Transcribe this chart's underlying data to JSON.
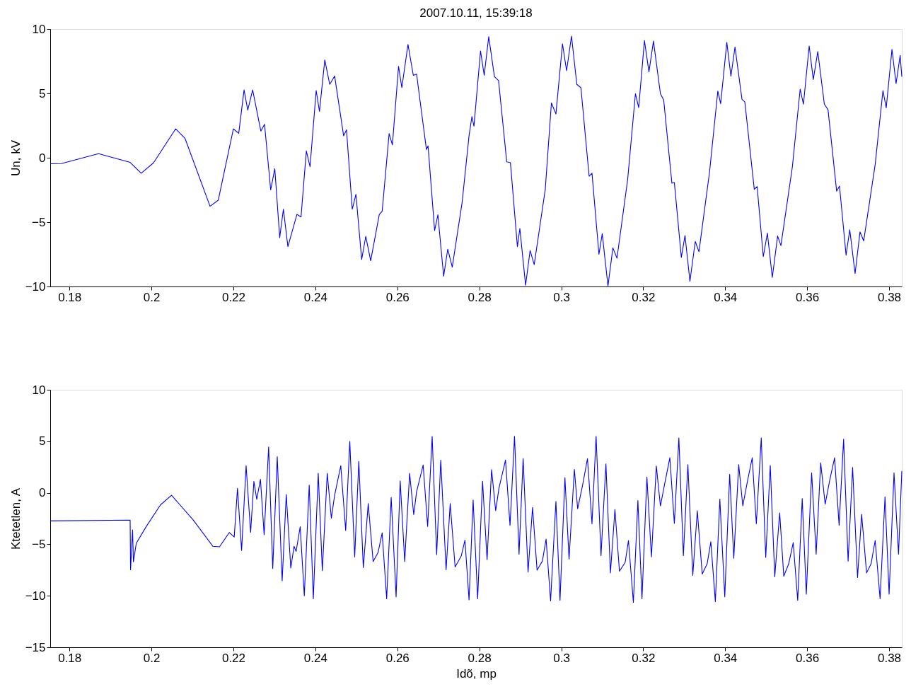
{
  "chart_data": [
    {
      "type": "line",
      "title": "2007.10.11, 15:39:18",
      "ylabel": "Un, kV",
      "xlim": [
        0.1753,
        0.3831
      ],
      "xticks": [
        0.18,
        0.2,
        0.22,
        0.24,
        0.26,
        0.28,
        0.3,
        0.32,
        0.34,
        0.36,
        0.38
      ],
      "ylim": [
        -10,
        10
      ],
      "yticks": [
        -10,
        -5,
        0,
        5,
        10
      ],
      "grid": false,
      "line_style": "solid",
      "marker": "none",
      "series": [
        {
          "color": "#0000ff",
          "x": [
            0.1753,
            0.178,
            0.1871,
            0.1948,
            0.1975,
            0.2005,
            0.2059,
            0.2082,
            0.2143,
            0.2163,
            0.22,
            0.2213,
            0.2226,
            0.2235,
            0.2247,
            0.2267,
            0.2276,
            0.2291,
            0.2301,
            0.2313,
            0.2322,
            0.2333,
            0.2355,
            0.2365,
            0.2378,
            0.2387,
            0.2402,
            0.241,
            0.2423,
            0.2435,
            0.2447,
            0.2469,
            0.2476,
            0.249,
            0.2499,
            0.2513,
            0.2523,
            0.2535,
            0.2556,
            0.2563,
            0.258,
            0.2588,
            0.2603,
            0.2611,
            0.2626,
            0.2639,
            0.2647,
            0.2671,
            0.2675,
            0.2691,
            0.2699,
            0.2713,
            0.2723,
            0.2734,
            0.2758,
            0.2775,
            0.2782,
            0.2787,
            0.2803,
            0.2812,
            0.2823,
            0.2837,
            0.2847,
            0.2867,
            0.2876,
            0.2893,
            0.2899,
            0.2913,
            0.2924,
            0.2934,
            0.2961,
            0.2976,
            0.2987,
            0.3003,
            0.3013,
            0.3025,
            0.3038,
            0.3048,
            0.3068,
            0.3075,
            0.3092,
            0.31,
            0.3114,
            0.3126,
            0.3136,
            0.3162,
            0.3181,
            0.3189,
            0.3203,
            0.3214,
            0.3225,
            0.3242,
            0.325,
            0.327,
            0.3276,
            0.3293,
            0.3302,
            0.3314,
            0.3327,
            0.3336,
            0.3362,
            0.3382,
            0.3389,
            0.3404,
            0.3414,
            0.3424,
            0.3441,
            0.3448,
            0.3471,
            0.3478,
            0.3493,
            0.3503,
            0.3515,
            0.3528,
            0.3536,
            0.3564,
            0.3583,
            0.3591,
            0.3605,
            0.3615,
            0.3626,
            0.3642,
            0.3651,
            0.3672,
            0.3679,
            0.3695,
            0.3704,
            0.3717,
            0.3729,
            0.3738,
            0.3766,
            0.3785,
            0.3793,
            0.3807,
            0.3817,
            0.3827,
            0.3831
          ],
          "values": [
            -0.47,
            -0.45,
            0.32,
            -0.36,
            -1.2,
            -0.4,
            2.24,
            1.5,
            -3.77,
            -3.3,
            2.24,
            1.9,
            5.27,
            3.7,
            5.27,
            2.07,
            2.6,
            -2.5,
            -0.85,
            -6.2,
            -4.0,
            -6.9,
            -4.4,
            -4.6,
            0.53,
            -0.7,
            5.22,
            3.6,
            7.6,
            5.7,
            6.35,
            1.7,
            2.17,
            -4.0,
            -2.84,
            -7.9,
            -6.1,
            -8.0,
            -4.4,
            -4.16,
            1.88,
            1.0,
            7.1,
            5.44,
            8.8,
            6.4,
            6.5,
            0.64,
            0.92,
            -5.65,
            -4.43,
            -9.2,
            -7.1,
            -8.5,
            -3.5,
            1.7,
            3.2,
            2.45,
            8.3,
            6.4,
            9.4,
            6.3,
            6.0,
            -0.32,
            -0.38,
            -6.9,
            -5.5,
            -9.9,
            -7.2,
            -8.3,
            -2.45,
            4.26,
            3.4,
            8.85,
            6.76,
            9.45,
            5.7,
            5.44,
            -1.43,
            -1.2,
            -7.5,
            -5.9,
            -9.96,
            -7.0,
            -7.8,
            -1.7,
            4.97,
            3.9,
            9.1,
            6.67,
            9.06,
            4.97,
            4.48,
            -1.98,
            -1.92,
            -7.74,
            -6.04,
            -9.6,
            -6.5,
            -7.3,
            -1.07,
            5.18,
            4.2,
            8.96,
            6.33,
            8.6,
            4.54,
            4.33,
            -2.45,
            -2.24,
            -7.68,
            -5.86,
            -9.3,
            -6.08,
            -6.82,
            -0.7,
            5.33,
            4.16,
            8.68,
            6.08,
            8.25,
            4.16,
            3.73,
            -2.6,
            -2.2,
            -7.57,
            -5.6,
            -9.0,
            -5.76,
            -6.46,
            -0.53,
            5.22,
            3.88,
            8.42,
            5.76,
            7.95,
            6.3
          ]
        }
      ]
    },
    {
      "type": "line",
      "xlabel": "Idõ, mp",
      "ylabel": "Ktetetlen, A",
      "xlim": [
        0.1753,
        0.3831
      ],
      "xticks": [
        0.18,
        0.2,
        0.22,
        0.24,
        0.26,
        0.28,
        0.3,
        0.32,
        0.34,
        0.36,
        0.38
      ],
      "ylim": [
        -15,
        10
      ],
      "yticks": [
        -15,
        -10,
        -5,
        0,
        5,
        10
      ],
      "grid": false,
      "line_style": "solid",
      "marker": "none",
      "series": [
        {
          "color": "#0000ff",
          "x": [
            0.1753,
            0.1948,
            0.1949,
            0.1954,
            0.1956,
            0.1963,
            0.1987,
            0.2022,
            0.2049,
            0.2102,
            0.215,
            0.2166,
            0.219,
            0.2202,
            0.221,
            0.222,
            0.2231,
            0.2242,
            0.225,
            0.2257,
            0.2266,
            0.2275,
            0.2286,
            0.2296,
            0.2307,
            0.2319,
            0.2329,
            0.234,
            0.2348,
            0.2353,
            0.2363,
            0.2373,
            0.2385,
            0.2395,
            0.2407,
            0.2417,
            0.2429,
            0.2439,
            0.2447,
            0.2462,
            0.2474,
            0.2484,
            0.2496,
            0.2506,
            0.2517,
            0.2529,
            0.2541,
            0.2553,
            0.2563,
            0.2574,
            0.2585,
            0.2597,
            0.2607,
            0.2618,
            0.263,
            0.264,
            0.2647,
            0.2663,
            0.2674,
            0.2685,
            0.2696,
            0.2706,
            0.2719,
            0.2729,
            0.2741,
            0.2756,
            0.2765,
            0.2775,
            0.2785,
            0.2796,
            0.2808,
            0.2819,
            0.283,
            0.284,
            0.2848,
            0.2864,
            0.2875,
            0.2886,
            0.2897,
            0.2907,
            0.2919,
            0.293,
            0.2941,
            0.2954,
            0.2963,
            0.2974,
            0.2987,
            0.2997,
            0.3009,
            0.3019,
            0.3032,
            0.304,
            0.3052,
            0.3064,
            0.3075,
            0.3085,
            0.3097,
            0.3109,
            0.312,
            0.3131,
            0.3142,
            0.3156,
            0.3164,
            0.3176,
            0.3187,
            0.3197,
            0.3209,
            0.322,
            0.3232,
            0.3242,
            0.3253,
            0.3265,
            0.3276,
            0.3287,
            0.3298,
            0.3309,
            0.3321,
            0.3332,
            0.3344,
            0.3356,
            0.3365,
            0.3376,
            0.3387,
            0.3399,
            0.3411,
            0.3421,
            0.3433,
            0.3443,
            0.3454,
            0.3466,
            0.3476,
            0.3488,
            0.3499,
            0.351,
            0.3521,
            0.3533,
            0.3543,
            0.3555,
            0.3566,
            0.3577,
            0.3588,
            0.3598,
            0.3611,
            0.3622,
            0.3633,
            0.3644,
            0.3655,
            0.3667,
            0.3678,
            0.3689,
            0.37,
            0.3711,
            0.3723,
            0.3733,
            0.3745,
            0.3756,
            0.3766,
            0.3778,
            0.379,
            0.38,
            0.3812,
            0.3823,
            0.3831
          ],
          "values": [
            -2.73,
            -2.65,
            -7.48,
            -3.6,
            -6.7,
            -4.9,
            -3.3,
            -1.18,
            -0.24,
            -2.65,
            -5.2,
            -5.25,
            -3.86,
            -4.3,
            0.43,
            -5.6,
            2.63,
            -3.86,
            1.1,
            -0.64,
            1.31,
            -4.07,
            4.45,
            -7.35,
            3.5,
            -8.55,
            -0.16,
            -7.3,
            -5.2,
            -5.7,
            -3.3,
            -10.0,
            0.75,
            -10.3,
            1.9,
            -7.56,
            1.9,
            -2.47,
            -0.24,
            2.63,
            -3.67,
            4.99,
            -6.22,
            3.06,
            -7.27,
            -1.05,
            -6.68,
            -5.8,
            -3.9,
            -10.3,
            -0.46,
            -10.1,
            1.15,
            -6.68,
            1.9,
            -2.12,
            0.1,
            2.7,
            -3.27,
            5.47,
            -6.0,
            3.16,
            -7.48,
            -1.05,
            -7.2,
            -6.14,
            -4.6,
            -10.4,
            -0.7,
            -10.3,
            1.12,
            -6.5,
            2.25,
            -1.74,
            0.45,
            3.18,
            -3.16,
            5.48,
            -5.96,
            3.32,
            -7.7,
            -1.42,
            -7.51,
            -6.63,
            -4.49,
            -10.5,
            -0.83,
            -10.45,
            1.47,
            -6.44,
            2.27,
            -1.55,
            0.72,
            3.32,
            -3.02,
            5.48,
            -6.1,
            2.8,
            -7.78,
            -1.63,
            -7.62,
            -6.76,
            -4.63,
            -10.64,
            -0.75,
            -10.3,
            1.52,
            -6.23,
            2.59,
            -1.28,
            0.99,
            3.4,
            -2.97,
            5.32,
            -6.1,
            2.73,
            -8.02,
            -1.74,
            -7.89,
            -6.9,
            -4.76,
            -10.56,
            -0.61,
            -10.1,
            1.79,
            -6.36,
            2.73,
            -1.28,
            1.04,
            3.4,
            -3.02,
            5.32,
            -6.28,
            2.65,
            -8.16,
            -1.95,
            -8.1,
            -6.9,
            -4.84,
            -10.45,
            -0.56,
            -9.84,
            1.93,
            -5.96,
            2.91,
            -1.1,
            1.2,
            3.4,
            -3.16,
            5.21,
            -6.63,
            2.46,
            -8.24,
            -2.09,
            -7.78,
            -6.9,
            -4.63,
            -10.3,
            -0.4,
            -9.84,
            1.93,
            -5.96,
            2.11
          ]
        }
      ]
    }
  ]
}
